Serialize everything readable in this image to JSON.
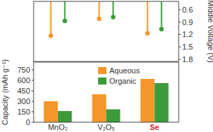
{
  "chart_data": [
    {
      "type": "lollipop",
      "y_label": "Middle Voltage (V)",
      "tick_labels": "y",
      "series": [
        {
          "color": "#f5962a",
          "values": [
            1.23,
            0.82,
            1.17
          ]
        },
        {
          "color": "#3d9a3a",
          "values": [
            0.87,
            0.78,
            1.07
          ]
        }
      ],
      "ylim": [
        1.85,
        0.4
      ],
      "yticks": [
        0.6,
        0.9,
        1.2,
        1.5,
        1.8
      ]
    },
    {
      "type": "bar",
      "y_label": "Capacity (mAh g⁻¹)",
      "categories": [
        "MnO₂",
        "V₂O₅",
        "Se"
      ],
      "series": [
        {
          "name": "Aqueous",
          "color": "#f5962a",
          "values": [
            300,
            400,
            620
          ]
        },
        {
          "name": "Organic",
          "color": "#3d9a3a",
          "values": [
            160,
            185,
            560
          ]
        }
      ],
      "ylim": [
        0,
        860
      ],
      "yticks": [
        0,
        150,
        300,
        450,
        600,
        750
      ],
      "legend": "top"
    }
  ]
}
